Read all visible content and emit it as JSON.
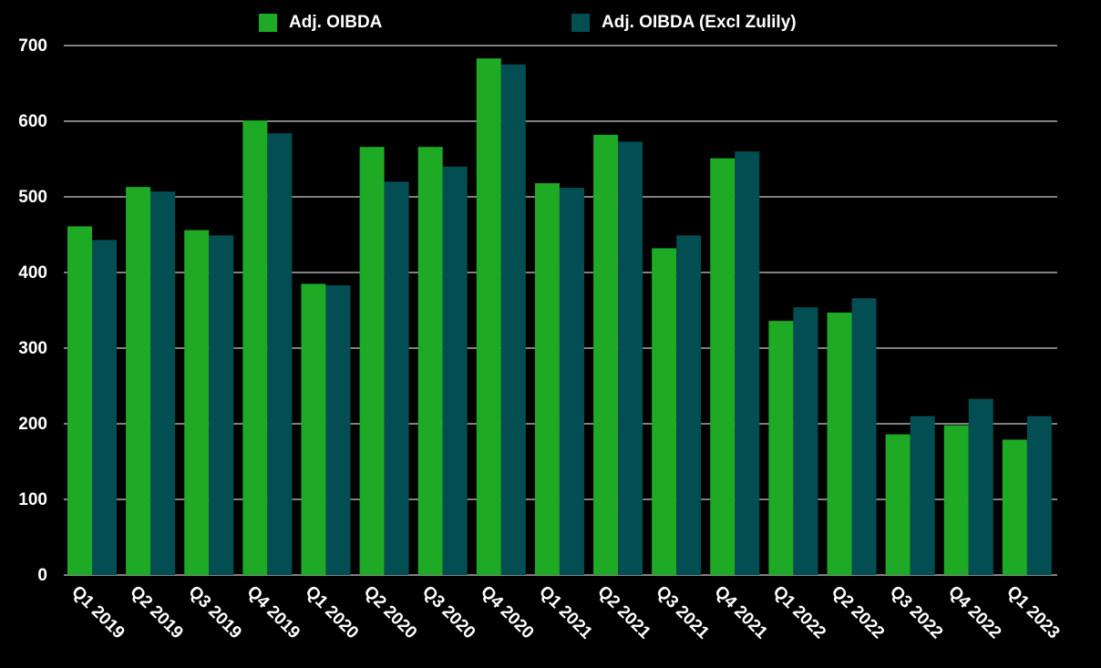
{
  "chart_data": {
    "type": "bar",
    "title": "",
    "xlabel": "",
    "ylabel": "",
    "categories": [
      "Q1 2019",
      "Q2 2019",
      "Q3 2019",
      "Q4 2019",
      "Q1 2020",
      "Q2 2020",
      "Q3 2020",
      "Q4 2020",
      "Q1 2021",
      "Q2 2021",
      "Q3 2021",
      "Q4 2021",
      "Q1 2022",
      "Q2 2022",
      "Q3 2022",
      "Q4 2022",
      "Q1 2023"
    ],
    "series": [
      {
        "name": "Adj. OIBDA",
        "color": "#1faa26",
        "values": [
          461,
          513,
          456,
          601,
          385,
          566,
          566,
          683,
          518,
          582,
          432,
          551,
          336,
          347,
          186,
          198,
          179
        ]
      },
      {
        "name": "Adj. OIBDA (Excl Zulily)",
        "color": "#034e52",
        "values": [
          443,
          507,
          449,
          584,
          383,
          520,
          540,
          675,
          512,
          573,
          449,
          560,
          354,
          366,
          210,
          233,
          210
        ]
      }
    ],
    "ylim": [
      0,
      700
    ],
    "yticks": [
      "0",
      "100",
      "200",
      "300",
      "400",
      "500",
      "600",
      "700"
    ],
    "grid": true,
    "legend_position": "top"
  }
}
